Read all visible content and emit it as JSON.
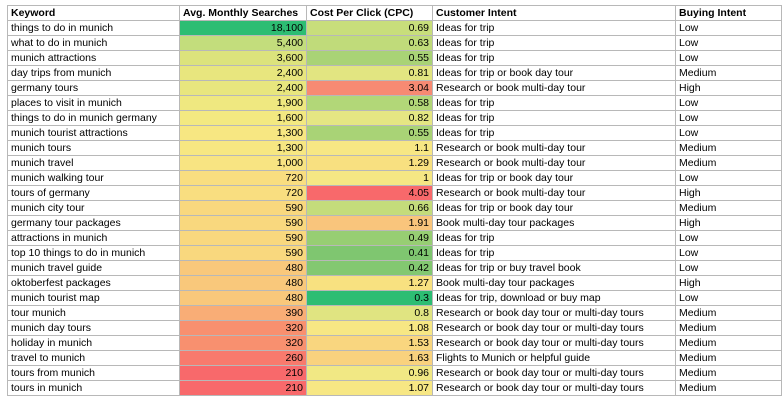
{
  "headers": [
    "Keyword",
    "Avg. Monthly Searches",
    "Cost Per Click (CPC)",
    "Customer Intent",
    "Buying Intent"
  ],
  "rows": [
    {
      "keyword": "things to do in munich",
      "searches": "18,100",
      "cpc": "0.69",
      "intent": "Ideas for trip",
      "buying": "Low",
      "search_color": "#2dbd73",
      "cpc_color": "#c8de7b"
    },
    {
      "keyword": "what to do in munich",
      "searches": "5,400",
      "cpc": "0.63",
      "intent": "Ideas for trip",
      "buying": "Low",
      "search_color": "#c3dd7c",
      "cpc_color": "#c0db7a"
    },
    {
      "keyword": "munich attractions",
      "searches": "3,600",
      "cpc": "0.55",
      "intent": "Ideas for trip",
      "buying": "Low",
      "search_color": "#dce37c",
      "cpc_color": "#a9d376"
    },
    {
      "keyword": "day trips from munich",
      "searches": "2,400",
      "cpc": "0.81",
      "intent": "Ideas for trip or book day tour",
      "buying": "Medium",
      "search_color": "#e8e67e",
      "cpc_color": "#e2e581"
    },
    {
      "keyword": "germany tours",
      "searches": "2,400",
      "cpc": "3.04",
      "intent": "Research or book multi-day tour",
      "buying": "High",
      "search_color": "#e8e67e",
      "cpc_color": "#f78a73"
    },
    {
      "keyword": "places to visit in munich",
      "searches": "1,900",
      "cpc": "0.58",
      "intent": "Ideas for trip",
      "buying": "Low",
      "search_color": "#efe880",
      "cpc_color": "#b2d778"
    },
    {
      "keyword": "things to do in munich germany",
      "searches": "1,600",
      "cpc": "0.82",
      "intent": "Ideas for trip",
      "buying": "Low",
      "search_color": "#f3e981",
      "cpc_color": "#e5e683"
    },
    {
      "keyword": "munich tourist attractions",
      "searches": "1,300",
      "cpc": "0.55",
      "intent": "Ideas for trip",
      "buying": "Low",
      "search_color": "#f7e782",
      "cpc_color": "#a9d376"
    },
    {
      "keyword": "munich tours",
      "searches": "1,300",
      "cpc": "1.1",
      "intent": "Research or book multi-day tour",
      "buying": "Medium",
      "search_color": "#f7e782",
      "cpc_color": "#f7e784"
    },
    {
      "keyword": "munich travel",
      "searches": "1,000",
      "cpc": "1.29",
      "intent": "Research or book multi-day tour",
      "buying": "Medium",
      "search_color": "#f8e482",
      "cpc_color": "#f8e080"
    },
    {
      "keyword": "munich walking tour",
      "searches": "720",
      "cpc": "1",
      "intent": "Ideas for trip or book day tour",
      "buying": "Low",
      "search_color": "#f9de80",
      "cpc_color": "#f5e784"
    },
    {
      "keyword": "tours of germany",
      "searches": "720",
      "cpc": "4.05",
      "intent": "Research or book multi-day tour",
      "buying": "High",
      "search_color": "#f9de80",
      "cpc_color": "#f8696b"
    },
    {
      "keyword": "munich city tour",
      "searches": "590",
      "cpc": "0.66",
      "intent": "Ideas for trip or book day tour",
      "buying": "Medium",
      "search_color": "#f9d87e",
      "cpc_color": "#c4dc7b"
    },
    {
      "keyword": "germany tour packages",
      "searches": "590",
      "cpc": "1.91",
      "intent": "Book multi-day tour packages",
      "buying": "High",
      "search_color": "#f9d87e",
      "cpc_color": "#f9c57c"
    },
    {
      "keyword": "attractions in munich",
      "searches": "590",
      "cpc": "0.49",
      "intent": "Ideas for trip",
      "buying": "Low",
      "search_color": "#f9d87e",
      "cpc_color": "#97ce73"
    },
    {
      "keyword": "top 10 things to do in munich",
      "searches": "590",
      "cpc": "0.41",
      "intent": "Ideas for trip",
      "buying": "Low",
      "search_color": "#f9d87e",
      "cpc_color": "#7fc670"
    },
    {
      "keyword": "munich travel guide",
      "searches": "480",
      "cpc": "0.42",
      "intent": "Ideas for trip or buy travel book",
      "buying": "Low",
      "search_color": "#f9c87b",
      "cpc_color": "#83c871"
    },
    {
      "keyword": "oktoberfest packages",
      "searches": "480",
      "cpc": "1.27",
      "intent": "Book multi-day tour packages",
      "buying": "High",
      "search_color": "#f9c87b",
      "cpc_color": "#f8e180"
    },
    {
      "keyword": "munich tourist map",
      "searches": "480",
      "cpc": "0.3",
      "intent": "Ideas for trip, download or buy map",
      "buying": "Low",
      "search_color": "#f9c87b",
      "cpc_color": "#2dbd73"
    },
    {
      "keyword": "tour munich",
      "searches": "390",
      "cpc": "0.8",
      "intent": "Research or book day tour or multi-day tours",
      "buying": "Medium",
      "search_color": "#f9ad76",
      "cpc_color": "#e0e481"
    },
    {
      "keyword": "munich day tours",
      "searches": "320",
      "cpc": "1.08",
      "intent": "Research or book day tour or multi-day tours",
      "buying": "Medium",
      "search_color": "#f8906f",
      "cpc_color": "#f7e784"
    },
    {
      "keyword": "holiday in munich",
      "searches": "320",
      "cpc": "1.53",
      "intent": "Research or book day tour or multi-day tours",
      "buying": "Medium",
      "search_color": "#f8906f",
      "cpc_color": "#f9d67f"
    },
    {
      "keyword": "travel to munich",
      "searches": "260",
      "cpc": "1.63",
      "intent": "Flights to Munich or helpful guide",
      "buying": "Medium",
      "search_color": "#f87a6d",
      "cpc_color": "#f9d27e"
    },
    {
      "keyword": "tours from munich",
      "searches": "210",
      "cpc": "0.96",
      "intent": "Research or book day tour or multi-day tours",
      "buying": "Medium",
      "search_color": "#f8696b",
      "cpc_color": "#f1e884"
    },
    {
      "keyword": "tours in munich",
      "searches": "210",
      "cpc": "1.07",
      "intent": "Research or book day tour or multi-day tours",
      "buying": "Medium",
      "search_color": "#f8696b",
      "cpc_color": "#f7e784"
    }
  ]
}
